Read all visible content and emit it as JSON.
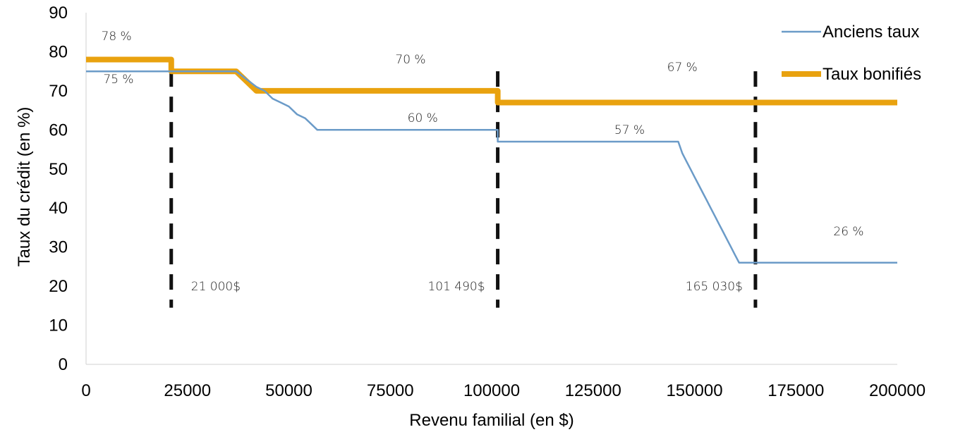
{
  "chart_data": {
    "type": "line",
    "xlabel": "Revenu familial (en $)",
    "ylabel": "Taux du crédit (en %)",
    "xlim": [
      0,
      200000
    ],
    "ylim": [
      0,
      90
    ],
    "x_ticks": [
      "0",
      "25000",
      "50000",
      "75000",
      "100000",
      "125000",
      "150000",
      "175000",
      "200000"
    ],
    "y_ticks": [
      "0",
      "10",
      "20",
      "30",
      "40",
      "50",
      "60",
      "70",
      "80",
      "90"
    ],
    "grid": false,
    "legend_position": "top-right",
    "series": [
      {
        "name": "Anciens taux",
        "color": "#6b9bc8",
        "points": [
          [
            0,
            75
          ],
          [
            21000,
            75
          ],
          [
            21000,
            75
          ],
          [
            37000,
            75
          ],
          [
            42000,
            71
          ],
          [
            44000,
            70
          ],
          [
            46000,
            68
          ],
          [
            48000,
            67
          ],
          [
            50000,
            66
          ],
          [
            52000,
            64
          ],
          [
            54000,
            63
          ],
          [
            55000,
            62
          ],
          [
            57000,
            60
          ],
          [
            101490,
            60
          ],
          [
            101490,
            57
          ],
          [
            146000,
            57
          ],
          [
            147000,
            54
          ],
          [
            148000,
            52
          ],
          [
            149000,
            50
          ],
          [
            150000,
            48
          ],
          [
            151000,
            46
          ],
          [
            152000,
            44
          ],
          [
            153000,
            42
          ],
          [
            154000,
            40
          ],
          [
            155000,
            38
          ],
          [
            156000,
            36
          ],
          [
            157000,
            34
          ],
          [
            158000,
            32
          ],
          [
            159000,
            30
          ],
          [
            160000,
            28
          ],
          [
            161000,
            26
          ],
          [
            200000,
            26
          ]
        ]
      },
      {
        "name": "Taux bonifiés",
        "color": "#e9a20f",
        "points": [
          [
            0,
            78
          ],
          [
            21000,
            78
          ],
          [
            21000,
            75
          ],
          [
            37000,
            75
          ],
          [
            38000,
            74
          ],
          [
            39000,
            73
          ],
          [
            40000,
            72
          ],
          [
            41000,
            71
          ],
          [
            42000,
            70
          ],
          [
            101490,
            70
          ],
          [
            101490,
            67
          ],
          [
            200000,
            67
          ]
        ]
      }
    ],
    "vertical_markers": [
      {
        "x": 21000,
        "label": "21 000$"
      },
      {
        "x": 101490,
        "label": "101 490$"
      },
      {
        "x": 165030,
        "label": "165 030$"
      }
    ],
    "annotations": [
      {
        "text": "78 %",
        "x": 7500,
        "y": 83
      },
      {
        "text": "75 %",
        "x": 8000,
        "y": 72
      },
      {
        "text": "70 %",
        "x": 80000,
        "y": 77
      },
      {
        "text": "60 %",
        "x": 83000,
        "y": 62
      },
      {
        "text": "67 %",
        "x": 147000,
        "y": 75
      },
      {
        "text": "57 %",
        "x": 134000,
        "y": 59
      },
      {
        "text": "26 %",
        "x": 188000,
        "y": 33
      }
    ]
  }
}
